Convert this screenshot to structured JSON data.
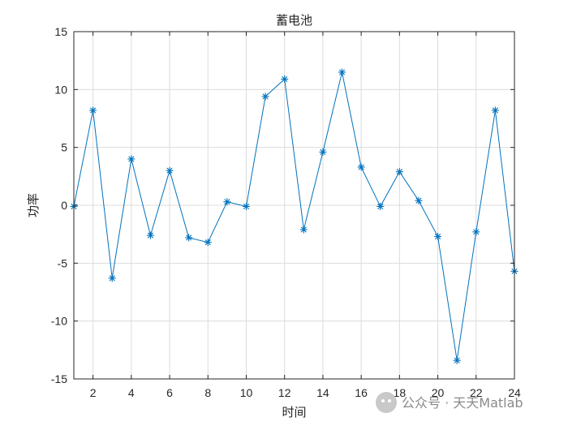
{
  "watermark": {
    "text": "公众号 · 天天Matlab"
  },
  "chart_data": {
    "type": "line",
    "title": "蓄电池",
    "xlabel": "时间",
    "ylabel": "功率",
    "xlim": [
      1,
      24
    ],
    "ylim": [
      -15,
      15
    ],
    "xticks": [
      2,
      4,
      6,
      8,
      10,
      12,
      14,
      16,
      18,
      20,
      22,
      24
    ],
    "yticks": [
      -15,
      -10,
      -5,
      0,
      5,
      10,
      15
    ],
    "grid": true,
    "marker": "asterisk",
    "line_color": "#0072BD",
    "series": [
      {
        "x": [
          1,
          2,
          3,
          4,
          5,
          6,
          7,
          8,
          9,
          10,
          11,
          12,
          13,
          14,
          15,
          16,
          17,
          18,
          19,
          20,
          21,
          22,
          23,
          24
        ],
        "values": [
          -0.1,
          8.2,
          -6.3,
          4.0,
          -2.6,
          3.0,
          -2.8,
          -3.2,
          0.3,
          -0.1,
          9.4,
          10.9,
          -2.1,
          4.6,
          11.5,
          3.3,
          -0.1,
          2.9,
          0.4,
          -2.7,
          -13.4,
          -2.3,
          8.2,
          -5.7
        ]
      }
    ]
  }
}
